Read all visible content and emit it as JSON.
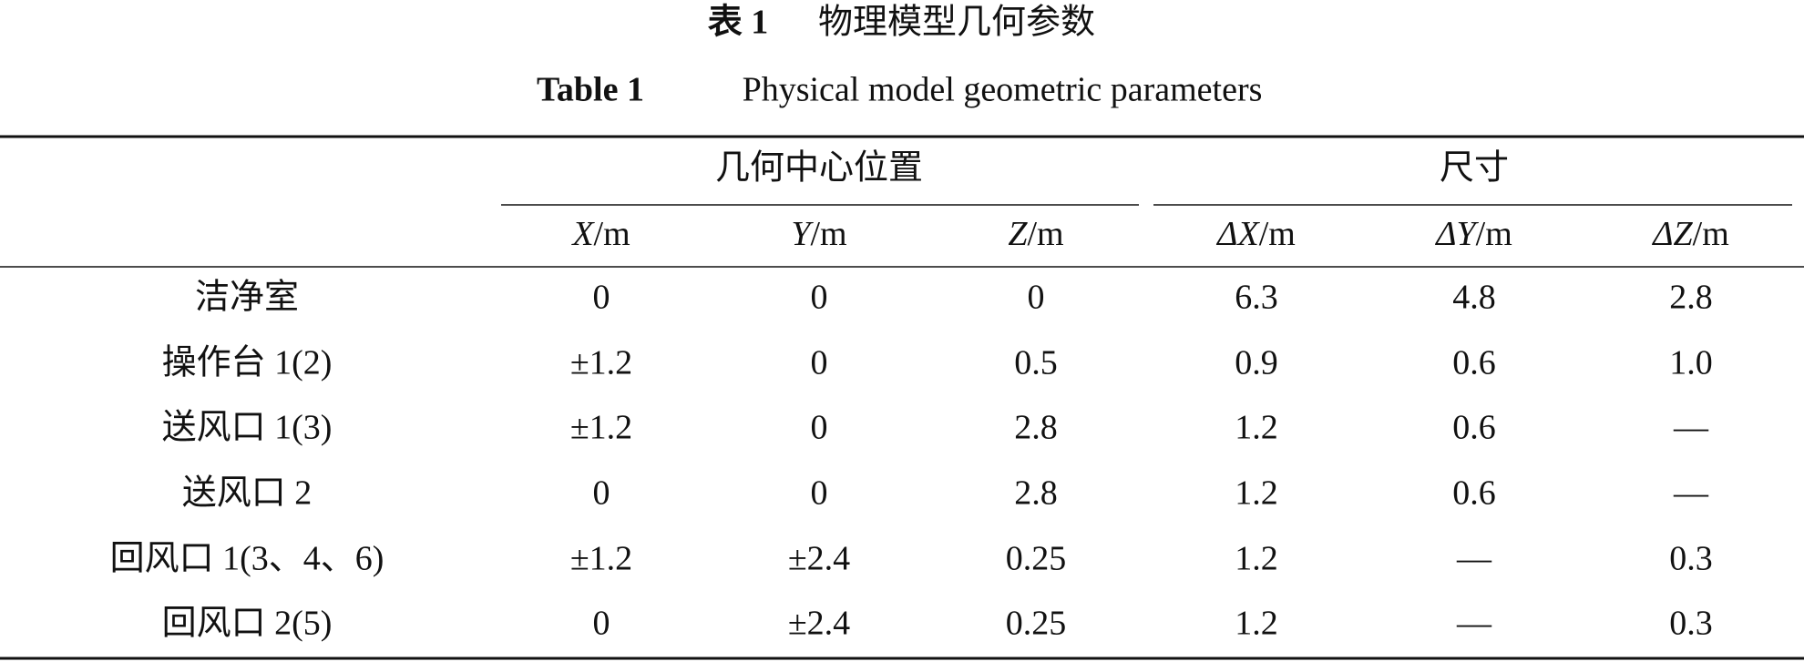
{
  "caption": {
    "label_cn": "表 1",
    "title_cn": "物理模型几何参数",
    "label_en": "Table 1",
    "title_en": "Physical model geometric parameters"
  },
  "table": {
    "groups": [
      "几何中心位置",
      "尺寸"
    ],
    "columns": [
      {
        "symbol": "X",
        "unit": "/m"
      },
      {
        "symbol": "Y",
        "unit": "/m"
      },
      {
        "symbol": "Z",
        "unit": "/m"
      },
      {
        "symbol": "ΔX",
        "unit": "/m"
      },
      {
        "symbol": "ΔY",
        "unit": "/m"
      },
      {
        "symbol": "ΔZ",
        "unit": "/m"
      }
    ],
    "rows": [
      [
        "洁净室",
        "0",
        "0",
        "0",
        "6.3",
        "4.8",
        "2.8"
      ],
      [
        "操作台 1(2)",
        "±1.2",
        "0",
        "0.5",
        "0.9",
        "0.6",
        "1.0"
      ],
      [
        "送风口 1(3)",
        "±1.2",
        "0",
        "2.8",
        "1.2",
        "0.6",
        "—"
      ],
      [
        "送风口 2",
        "0",
        "0",
        "2.8",
        "1.2",
        "0.6",
        "—"
      ],
      [
        "回风口 1(3、4、6)",
        "±1.2",
        "±2.4",
        "0.25",
        "1.2",
        "—",
        "0.3"
      ],
      [
        "回风口 2(5)",
        "0",
        "±2.4",
        "0.25",
        "1.2",
        "—",
        "0.3"
      ]
    ]
  }
}
